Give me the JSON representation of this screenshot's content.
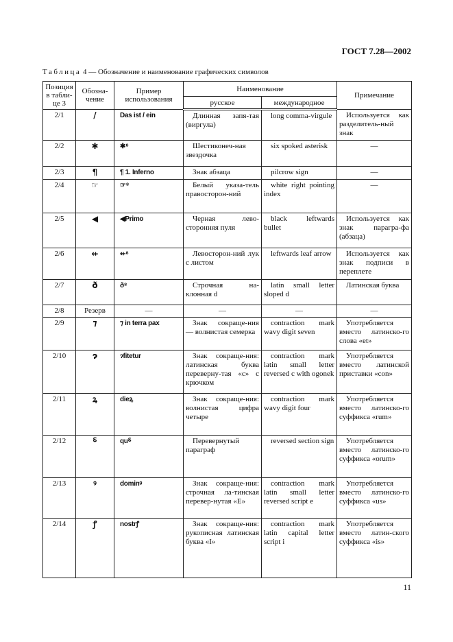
{
  "header": {
    "doc_id": "ГОСТ 7.28—2002"
  },
  "caption": {
    "label": "Таблица",
    "rest": " 4 — Обозначение и наименование графических символов"
  },
  "table": {
    "headers": {
      "position": "Позиция в табли-це 3",
      "symbol": "Обозна-чение",
      "example": "Пример использования",
      "name": "Наименование",
      "russian": "русское",
      "international": "международное",
      "note": "Примечание"
    },
    "rows": [
      {
        "pos": "2/1",
        "sym": "/",
        "ex": "Das ist / ein",
        "ru": "Длинная запя-тая (виргула)",
        "en": "long comma-virgule",
        "note": "Используется как разделитель-ный знак"
      },
      {
        "pos": "2/2",
        "sym": "✱",
        "ex": "✱⁸",
        "ru": "Шестиконеч-ная звездочка",
        "en": "six spoked asterisk",
        "note": "—"
      },
      {
        "pos": "2/3",
        "sym": "¶",
        "ex": "¶ 1. Inferno",
        "ru": "Знак абзаца",
        "en": "pilcrow sign",
        "note": "—"
      },
      {
        "pos": "2/4",
        "sym": "☞",
        "ex": "☞⁸",
        "ru": "Белый указа-тель правосторон-ний",
        "en": "white right pointing index",
        "note": "—"
      },
      {
        "pos": "2/5",
        "sym": "◀",
        "ex": "◀Primo",
        "ru": "Черная лево-сторонняя пуля",
        "en": "black leftwards bullet",
        "note": "Используется как знак парагра-фа (абзаца)"
      },
      {
        "pos": "2/6",
        "sym": "⇷",
        "ex": "⇷⁸",
        "ru": "Левосторон-ний лук с листом",
        "en": "leftwards leaf arrow",
        "note": "Используется как знак подписи в переплете"
      },
      {
        "pos": "2/7",
        "sym": "ð",
        "ex": "ð⁸",
        "ru": "Строчная на-клонная d",
        "en": "latin small letter sloped d",
        "note": "Латинская буква"
      },
      {
        "pos": "2/8",
        "sym": "Резерв",
        "ex": "—",
        "ru": "—",
        "en": "—",
        "note": "—"
      },
      {
        "pos": "2/9",
        "sym": "⁊",
        "ex": "⁊ in terra pax",
        "ru": "Знак сокраще-ния — волнистая семерка",
        "en": "contraction mark wavy digit seven",
        "note": "Употребляется вместо латинско-го слова «et»"
      },
      {
        "pos": "2/10",
        "sym": "ɂ",
        "ex": "ɂfitetur",
        "ru": "Знак сокраще-ния: латинская буква переверну-тая «c» с крючком",
        "en": "contraction mark latin small letter reversed c with ogonek",
        "note": "Употребляется вместо латинской приставки «con»"
      },
      {
        "pos": "2/11",
        "sym": "ꝝ",
        "ex": "dieꝝ",
        "ru": "Знак сокраще-ния: волнистая цифра четыре",
        "en": "contraction mark wavy digit four",
        "note": "Употребляется вместо латинско-го суффикса «rum»"
      },
      {
        "pos": "2/12",
        "sym": "⸹",
        "ex": "qu⸹",
        "ru": "Перевернутый параграф",
        "en": "reversed section sign",
        "note": "Употребляется вместо латинско-го суффикса «orum»"
      },
      {
        "pos": "2/13",
        "sym": "ꝰ",
        "ex": "dominꝰ",
        "ru": "Знак сокраще-ния: строчная ла-тинская перевер-нутая «E»",
        "en": "contraction mark latin small letter reversed script e",
        "note": "Употребляется вместо латинско-го суффикса «us»"
      },
      {
        "pos": "2/14",
        "sym": "ꝭ",
        "ex": "nostrꝭ",
        "ru": "Знак сокраще-ния: рукописная латинская буква «I»",
        "en": "contraction mark latin capital letter script i",
        "note": "Употребляется вместо латин-ского суффикса «is»"
      }
    ]
  },
  "footer": {
    "page_number": "11"
  }
}
